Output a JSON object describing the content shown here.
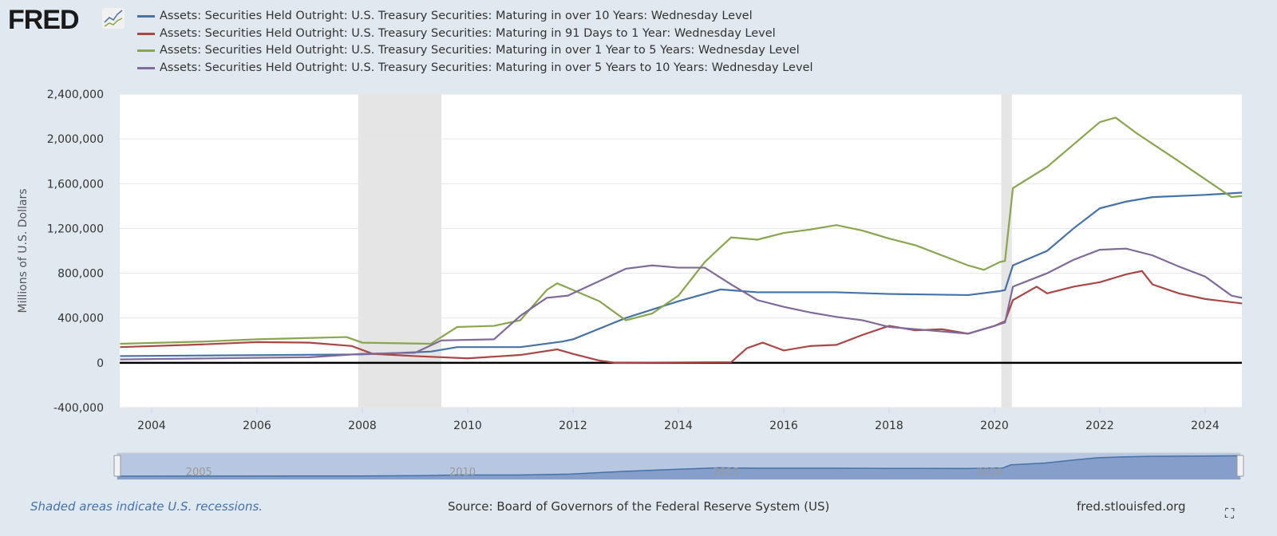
{
  "logo": "FRED",
  "footer": {
    "note": "Shaded areas indicate U.S. recessions.",
    "source": "Source: Board of Governors of the Federal Reserve System (US)",
    "site": "fred.stlouisfed.org"
  },
  "chart_data": {
    "type": "line",
    "ylabel": "Millions of U.S. Dollars",
    "ylim": [
      -400000,
      2400000
    ],
    "xlim": [
      2003.4,
      2024.7
    ],
    "yticks": [
      -400000,
      0,
      400000,
      800000,
      1200000,
      1600000,
      2000000,
      2400000
    ],
    "ytick_labels": [
      "-400,000",
      "0",
      "400,000",
      "800,000",
      "1,200,000",
      "1,600,000",
      "2,000,000",
      "2,400,000"
    ],
    "xticks": [
      "2004",
      "2006",
      "2008",
      "2010",
      "2012",
      "2014",
      "2016",
      "2018",
      "2020",
      "2022",
      "2024"
    ],
    "navigator_labels": [
      "2005",
      "2010",
      "2015",
      "2020"
    ],
    "recessions": [
      [
        2007.92,
        2009.5
      ],
      [
        2020.13,
        2020.33
      ]
    ],
    "legend_placement": "top",
    "series": [
      {
        "name": "Assets: Securities Held Outright: U.S. Treasury Securities: Maturing in over 10 Years: Wednesday Level",
        "color": "#4572a7",
        "points": [
          [
            2003.4,
            60000
          ],
          [
            2008,
            75000
          ],
          [
            2009.3,
            100000
          ],
          [
            2009.8,
            140000
          ],
          [
            2011,
            140000
          ],
          [
            2011.8,
            190000
          ],
          [
            2012,
            210000
          ],
          [
            2013,
            400000
          ],
          [
            2014,
            550000
          ],
          [
            2014.8,
            655000
          ],
          [
            2015.5,
            630000
          ],
          [
            2017,
            630000
          ],
          [
            2018,
            615000
          ],
          [
            2019.5,
            605000
          ],
          [
            2020.1,
            640000
          ],
          [
            2020.2,
            650000
          ],
          [
            2020.35,
            870000
          ],
          [
            2021,
            1000000
          ],
          [
            2021.5,
            1200000
          ],
          [
            2022,
            1380000
          ],
          [
            2022.5,
            1440000
          ],
          [
            2023,
            1480000
          ],
          [
            2024,
            1500000
          ],
          [
            2024.7,
            1520000
          ]
        ]
      },
      {
        "name": "Assets: Securities Held Outright: U.S. Treasury Securities: Maturing in 91 Days to 1 Year: Wednesday Level",
        "color": "#aa4643",
        "points": [
          [
            2003.4,
            140000
          ],
          [
            2005,
            165000
          ],
          [
            2006,
            185000
          ],
          [
            2007,
            180000
          ],
          [
            2007.8,
            150000
          ],
          [
            2008.2,
            80000
          ],
          [
            2009,
            60000
          ],
          [
            2010,
            40000
          ],
          [
            2011,
            70000
          ],
          [
            2011.7,
            120000
          ],
          [
            2012,
            80000
          ],
          [
            2012.5,
            20000
          ],
          [
            2012.8,
            0
          ],
          [
            2015,
            5000
          ],
          [
            2015.3,
            130000
          ],
          [
            2015.6,
            180000
          ],
          [
            2016,
            110000
          ],
          [
            2016.5,
            150000
          ],
          [
            2017,
            160000
          ],
          [
            2017.5,
            250000
          ],
          [
            2018,
            330000
          ],
          [
            2018.5,
            290000
          ],
          [
            2019,
            300000
          ],
          [
            2019.5,
            260000
          ],
          [
            2020,
            330000
          ],
          [
            2020.2,
            370000
          ],
          [
            2020.35,
            560000
          ],
          [
            2020.8,
            680000
          ],
          [
            2021,
            620000
          ],
          [
            2021.5,
            680000
          ],
          [
            2022,
            720000
          ],
          [
            2022.5,
            790000
          ],
          [
            2022.8,
            820000
          ],
          [
            2023,
            700000
          ],
          [
            2023.5,
            620000
          ],
          [
            2024,
            570000
          ],
          [
            2024.7,
            530000
          ]
        ]
      },
      {
        "name": "Assets: Securities Held Outright: U.S. Treasury Securities: Maturing in over 1 Year to 5 Years: Wednesday Level",
        "color": "#89a54e",
        "points": [
          [
            2003.4,
            170000
          ],
          [
            2005,
            190000
          ],
          [
            2006,
            210000
          ],
          [
            2007.7,
            230000
          ],
          [
            2008,
            180000
          ],
          [
            2009.3,
            170000
          ],
          [
            2009.8,
            320000
          ],
          [
            2010.5,
            330000
          ],
          [
            2011,
            380000
          ],
          [
            2011.5,
            650000
          ],
          [
            2011.7,
            710000
          ],
          [
            2012,
            650000
          ],
          [
            2012.5,
            550000
          ],
          [
            2013,
            380000
          ],
          [
            2013.5,
            440000
          ],
          [
            2014,
            600000
          ],
          [
            2014.5,
            900000
          ],
          [
            2015,
            1120000
          ],
          [
            2015.5,
            1100000
          ],
          [
            2016,
            1160000
          ],
          [
            2016.5,
            1190000
          ],
          [
            2017,
            1230000
          ],
          [
            2017.5,
            1180000
          ],
          [
            2018,
            1110000
          ],
          [
            2018.5,
            1050000
          ],
          [
            2019,
            960000
          ],
          [
            2019.5,
            870000
          ],
          [
            2019.8,
            830000
          ],
          [
            2020.1,
            900000
          ],
          [
            2020.2,
            910000
          ],
          [
            2020.35,
            1560000
          ],
          [
            2021,
            1750000
          ],
          [
            2021.5,
            1950000
          ],
          [
            2022,
            2150000
          ],
          [
            2022.3,
            2190000
          ],
          [
            2022.7,
            2050000
          ],
          [
            2023.5,
            1800000
          ],
          [
            2024,
            1640000
          ],
          [
            2024.5,
            1480000
          ],
          [
            2024.7,
            1490000
          ]
        ]
      },
      {
        "name": "Assets: Securities Held Outright: U.S. Treasury Securities: Maturing in over 5 Years to 10 Years: Wednesday Level",
        "color": "#80699b",
        "points": [
          [
            2003.4,
            30000
          ],
          [
            2007,
            50000
          ],
          [
            2008,
            80000
          ],
          [
            2009,
            90000
          ],
          [
            2009.5,
            200000
          ],
          [
            2010.5,
            210000
          ],
          [
            2011,
            420000
          ],
          [
            2011.5,
            580000
          ],
          [
            2011.9,
            600000
          ],
          [
            2012.5,
            730000
          ],
          [
            2013,
            840000
          ],
          [
            2013.5,
            870000
          ],
          [
            2014,
            850000
          ],
          [
            2014.5,
            850000
          ],
          [
            2015,
            700000
          ],
          [
            2015.5,
            560000
          ],
          [
            2016,
            500000
          ],
          [
            2016.5,
            450000
          ],
          [
            2017,
            410000
          ],
          [
            2017.5,
            380000
          ],
          [
            2018,
            320000
          ],
          [
            2019,
            280000
          ],
          [
            2019.5,
            260000
          ],
          [
            2020,
            330000
          ],
          [
            2020.2,
            360000
          ],
          [
            2020.35,
            680000
          ],
          [
            2021,
            800000
          ],
          [
            2021.5,
            920000
          ],
          [
            2022,
            1010000
          ],
          [
            2022.5,
            1020000
          ],
          [
            2023,
            960000
          ],
          [
            2023.5,
            860000
          ],
          [
            2024,
            770000
          ],
          [
            2024.5,
            600000
          ],
          [
            2024.7,
            580000
          ]
        ]
      }
    ]
  }
}
